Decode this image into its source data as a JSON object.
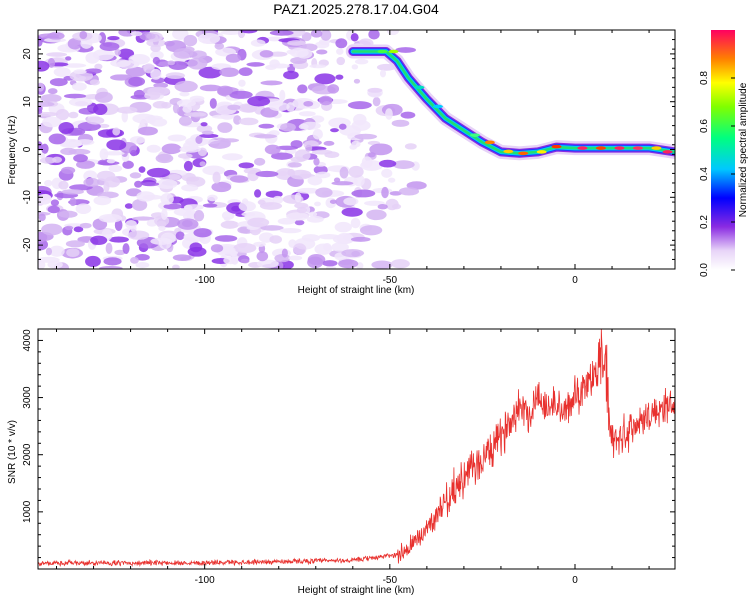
{
  "title": "PAZ1.2025.278.17.04.G04",
  "chart_data": [
    {
      "type": "heatmap",
      "name": "spectrogram",
      "xlabel": "Height of straight line (km)",
      "ylabel": "Frequency (Hz)",
      "xlim": [
        -145,
        27
      ],
      "ylim": [
        -25,
        25
      ],
      "x_ticks": [
        -100,
        -50,
        0
      ],
      "y_ticks": [
        -20,
        -10,
        0,
        10,
        20
      ],
      "colorbar": {
        "label": "Normalized spectral amplitude",
        "range": [
          0.0,
          1.0
        ],
        "ticks": [
          "0.0",
          "0.2",
          "0.4",
          "0.6",
          "0.8"
        ]
      },
      "ridge_line": {
        "x": [
          -60,
          -51,
          -48,
          -45,
          -40,
          -35,
          -30,
          -25,
          -20,
          -15,
          -10,
          -5,
          0,
          10,
          20,
          27
        ],
        "y": [
          20.5,
          20.5,
          18.5,
          15,
          10.5,
          6.5,
          4,
          1.5,
          -0.5,
          -0.8,
          -0.5,
          0.5,
          0.3,
          0.3,
          0.3,
          -0.5
        ]
      },
      "noise_region_x": [
        -145,
        -45
      ]
    },
    {
      "type": "line",
      "name": "snr",
      "xlabel": "Height of straight line (km)",
      "ylabel": "SNR (10 * v/v)",
      "xlim": [
        -145,
        27
      ],
      "ylim": [
        0,
        4200
      ],
      "x_ticks": [
        -100,
        -50,
        0
      ],
      "y_ticks": [
        1000,
        2000,
        3000,
        4000
      ],
      "series": [
        {
          "name": "SNR",
          "color": "#e8302d",
          "trend": {
            "x": [
              -145,
              -100,
              -60,
              -48,
              -45,
              -42,
              -38,
              -35,
              -30,
              -25,
              -20,
              -15,
              -12,
              -10,
              -8,
              -5,
              -3,
              0,
              3,
              6,
              8,
              9,
              10,
              12,
              15,
              20,
              27
            ],
            "y": [
              100,
              110,
              150,
              250,
              350,
              550,
              900,
              1200,
              1600,
              1900,
              2300,
              2900,
              2700,
              3100,
              2800,
              2900,
              2700,
              3000,
              3300,
              3400,
              3500,
              2700,
              2200,
              2300,
              2450,
              2700,
              2900
            ]
          }
        }
      ]
    }
  ]
}
